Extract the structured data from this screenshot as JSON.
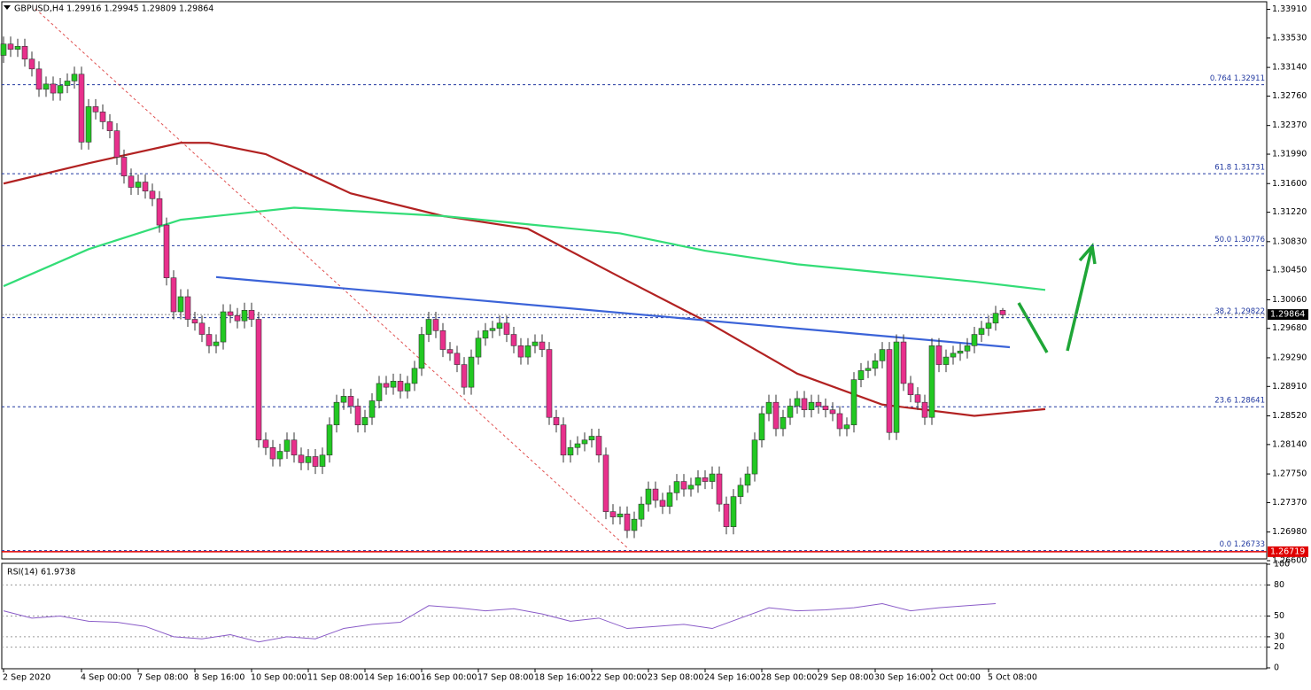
{
  "chart_data": {
    "type": "candlestick",
    "header": "GBPUSD,H4  1.29916 1.29945 1.29809 1.29864",
    "bull_color": "#22c822",
    "bear_color": "#e8308c",
    "open": [
      1.333,
      1.3345,
      1.3338,
      1.3342,
      1.3325,
      1.3312,
      1.3285,
      1.3292,
      1.328,
      1.329,
      1.3296,
      1.3305,
      1.3215,
      1.3262,
      1.3255,
      1.3242,
      1.323,
      1.3195,
      1.317,
      1.3155,
      1.3162,
      1.315,
      1.314,
      1.3105,
      1.3035,
      1.299,
      1.301,
      1.298,
      1.2975,
      1.296,
      1.2945,
      1.295,
      1.299,
      1.2985,
      1.2978,
      1.2992,
      1.298,
      1.282,
      1.281,
      1.2795,
      1.2805,
      1.282,
      1.28,
      1.279,
      1.2798,
      1.2785,
      1.28,
      1.284,
      1.287,
      1.2878,
      1.2865,
      1.284,
      1.285,
      1.2872,
      1.2895,
      1.289,
      1.2898,
      1.2885,
      1.2895,
      1.2915,
      1.296,
      1.298,
      1.2965,
      1.294,
      1.2935,
      1.292,
      1.289,
      1.293,
      1.2955,
      1.2965,
      1.2968,
      1.2975,
      1.296,
      1.2945,
      1.293,
      1.2945,
      1.295,
      1.294,
      1.285,
      1.284,
      1.28,
      1.281,
      1.2815,
      1.282,
      1.2825,
      1.28,
      1.2725,
      1.2718,
      1.2722,
      1.27,
      1.2715,
      1.2735,
      1.2755,
      1.274,
      1.2732,
      1.275,
      1.2765,
      1.2755,
      1.276,
      1.277,
      1.2765,
      1.2775,
      1.2735,
      1.2705,
      1.2745,
      1.276,
      1.2775,
      1.282,
      1.2855,
      1.287,
      1.2835,
      1.285,
      1.2865,
      1.2875,
      1.286,
      1.287,
      1.2865,
      1.286,
      1.2855,
      1.2835,
      1.284,
      1.29,
      1.2912,
      1.2915,
      1.2925,
      1.294,
      1.283,
      1.295,
      1.2895,
      1.288,
      1.287,
      1.285,
      1.2945,
      1.292,
      1.293,
      1.2935,
      1.2938,
      1.2945,
      1.296,
      1.2968,
      1.2975,
      1.2992
    ],
    "high": [
      1.3355,
      1.3355,
      1.3352,
      1.3352,
      1.3335,
      1.3322,
      1.3302,
      1.3302,
      1.33,
      1.3306,
      1.3315,
      1.3315,
      1.3272,
      1.3272,
      1.3265,
      1.3252,
      1.324,
      1.3205,
      1.318,
      1.3172,
      1.3172,
      1.316,
      1.315,
      1.3115,
      1.3045,
      1.302,
      1.302,
      1.299,
      1.2985,
      1.297,
      1.296,
      1.3,
      1.3,
      1.2995,
      1.3002,
      1.3002,
      1.299,
      1.283,
      1.282,
      1.2815,
      1.283,
      1.283,
      1.281,
      1.2808,
      1.2808,
      1.281,
      1.285,
      1.288,
      1.2888,
      1.2888,
      1.2875,
      1.286,
      1.2882,
      1.2905,
      1.2905,
      1.2908,
      1.2908,
      1.2905,
      1.2925,
      1.297,
      1.299,
      1.299,
      1.2975,
      1.295,
      1.2945,
      1.293,
      1.294,
      1.2965,
      1.2975,
      1.2978,
      1.2985,
      1.2985,
      1.297,
      1.2955,
      1.2955,
      1.296,
      1.296,
      1.295,
      1.286,
      1.285,
      1.282,
      1.2825,
      1.283,
      1.2835,
      1.2835,
      1.281,
      1.2735,
      1.2732,
      1.2732,
      1.2725,
      1.2745,
      1.2765,
      1.2765,
      1.275,
      1.276,
      1.2775,
      1.2775,
      1.277,
      1.278,
      1.278,
      1.2785,
      1.2785,
      1.2745,
      1.2755,
      1.277,
      1.2785,
      1.283,
      1.2865,
      1.288,
      1.288,
      1.286,
      1.2875,
      1.2885,
      1.2885,
      1.288,
      1.288,
      1.2875,
      1.287,
      1.2865,
      1.285,
      1.291,
      1.2922,
      1.2925,
      1.2935,
      1.295,
      1.295,
      1.296,
      1.296,
      1.2905,
      1.289,
      1.288,
      1.2955,
      1.2955,
      1.294,
      1.2945,
      1.2948,
      1.2955,
      1.297,
      1.2978,
      1.2985,
      1.2998,
      1.2995
    ],
    "low": [
      1.332,
      1.3328,
      1.3328,
      1.3315,
      1.3302,
      1.3275,
      1.3275,
      1.327,
      1.327,
      1.328,
      1.3286,
      1.3205,
      1.3205,
      1.3245,
      1.3232,
      1.322,
      1.3185,
      1.316,
      1.3145,
      1.3145,
      1.314,
      1.313,
      1.3095,
      1.3025,
      1.298,
      1.298,
      1.297,
      1.2965,
      1.295,
      1.2935,
      1.2935,
      1.294,
      1.2975,
      1.2968,
      1.2968,
      1.297,
      1.281,
      1.28,
      1.2785,
      1.2785,
      1.2795,
      1.279,
      1.278,
      1.278,
      1.2775,
      1.2775,
      1.279,
      1.283,
      1.286,
      1.2855,
      1.283,
      1.283,
      1.284,
      1.2862,
      1.288,
      1.288,
      1.2875,
      1.2875,
      1.2885,
      1.2905,
      1.295,
      1.2955,
      1.293,
      1.2925,
      1.291,
      1.288,
      1.288,
      1.292,
      1.2945,
      1.2955,
      1.2958,
      1.295,
      1.2935,
      1.292,
      1.292,
      1.2935,
      1.293,
      1.284,
      1.283,
      1.279,
      1.279,
      1.28,
      1.2805,
      1.281,
      1.279,
      1.2715,
      1.2708,
      1.2708,
      1.269,
      1.269,
      1.2705,
      1.2725,
      1.273,
      1.2722,
      1.2722,
      1.274,
      1.2745,
      1.2745,
      1.275,
      1.2755,
      1.2755,
      1.2725,
      1.2695,
      1.2695,
      1.2735,
      1.275,
      1.2765,
      1.281,
      1.2845,
      1.2825,
      1.2825,
      1.284,
      1.2855,
      1.285,
      1.285,
      1.2855,
      1.285,
      1.2845,
      1.2825,
      1.2825,
      1.283,
      1.289,
      1.2902,
      1.2905,
      1.2915,
      1.282,
      1.282,
      1.2885,
      1.287,
      1.286,
      1.284,
      1.284,
      1.291,
      1.291,
      1.292,
      1.2925,
      1.2928,
      1.2935,
      1.295,
      1.2958,
      1.2965,
      1.2981
    ],
    "close": [
      1.3345,
      1.3338,
      1.3342,
      1.3325,
      1.3312,
      1.3285,
      1.3292,
      1.328,
      1.329,
      1.3296,
      1.3305,
      1.3215,
      1.3262,
      1.3255,
      1.3242,
      1.323,
      1.3195,
      1.317,
      1.3155,
      1.3162,
      1.315,
      1.314,
      1.3105,
      1.3035,
      1.299,
      1.301,
      1.298,
      1.2975,
      1.296,
      1.2945,
      1.295,
      1.299,
      1.2985,
      1.2978,
      1.2992,
      1.298,
      1.282,
      1.281,
      1.2795,
      1.2805,
      1.282,
      1.28,
      1.279,
      1.2798,
      1.2785,
      1.28,
      1.284,
      1.287,
      1.2878,
      1.2865,
      1.284,
      1.285,
      1.2872,
      1.2895,
      1.289,
      1.2898,
      1.2885,
      1.2895,
      1.2915,
      1.296,
      1.298,
      1.2965,
      1.294,
      1.2935,
      1.292,
      1.289,
      1.293,
      1.2955,
      1.2965,
      1.2968,
      1.2975,
      1.296,
      1.2945,
      1.293,
      1.2945,
      1.295,
      1.294,
      1.285,
      1.284,
      1.28,
      1.281,
      1.2815,
      1.282,
      1.2825,
      1.28,
      1.2725,
      1.2718,
      1.2722,
      1.27,
      1.2715,
      1.2735,
      1.2755,
      1.274,
      1.2732,
      1.275,
      1.2765,
      1.2755,
      1.276,
      1.277,
      1.2765,
      1.2775,
      1.2735,
      1.2705,
      1.2745,
      1.276,
      1.2775,
      1.282,
      1.2855,
      1.287,
      1.2835,
      1.285,
      1.2865,
      1.2875,
      1.286,
      1.287,
      1.2865,
      1.286,
      1.2855,
      1.2835,
      1.284,
      1.29,
      1.2912,
      1.2915,
      1.2925,
      1.294,
      1.283,
      1.295,
      1.2895,
      1.288,
      1.287,
      1.285,
      1.2945,
      1.292,
      1.293,
      1.2935,
      1.2938,
      1.2945,
      1.296,
      1.2968,
      1.2975,
      1.2988,
      1.2986
    ],
    "ylim": [
      1.266,
      1.3394
    ],
    "yticks": [
      {
        "value": 1.3391,
        "label": "1.33910"
      },
      {
        "value": 1.3353,
        "label": "1.33530"
      },
      {
        "value": 1.3314,
        "label": "1.33140"
      },
      {
        "value": 1.3276,
        "label": "1.32760"
      },
      {
        "value": 1.3237,
        "label": "1.32370"
      },
      {
        "value": 1.3199,
        "label": "1.31990"
      },
      {
        "value": 1.316,
        "label": "1.31600"
      },
      {
        "value": 1.3122,
        "label": "1.31220"
      },
      {
        "value": 1.3083,
        "label": "1.30830"
      },
      {
        "value": 1.3045,
        "label": "1.30450"
      },
      {
        "value": 1.3006,
        "label": "1.30060"
      },
      {
        "value": 1.2968,
        "label": "1.29680"
      },
      {
        "value": 1.2929,
        "label": "1.29290"
      },
      {
        "value": 1.2891,
        "label": "1.28910"
      },
      {
        "value": 1.2852,
        "label": "1.28520"
      },
      {
        "value": 1.2814,
        "label": "1.28140"
      },
      {
        "value": 1.2775,
        "label": "1.27750"
      },
      {
        "value": 1.2737,
        "label": "1.27370"
      },
      {
        "value": 1.2698,
        "label": "1.26980"
      },
      {
        "value": 1.266,
        "label": "1.26600"
      }
    ],
    "xticks": [
      {
        "value": 0,
        "label": "2 Sep 2020"
      },
      {
        "value": 11,
        "label": "4 Sep 00:00"
      },
      {
        "value": 19,
        "label": "7 Sep 08:00"
      },
      {
        "value": 27,
        "label": "8 Sep 16:00"
      },
      {
        "value": 35,
        "label": "10 Sep 00:00"
      },
      {
        "value": 43,
        "label": "11 Sep 08:00"
      },
      {
        "value": 51,
        "label": "14 Sep 16:00"
      },
      {
        "value": 59,
        "label": "16 Sep 00:00"
      },
      {
        "value": 67,
        "label": "17 Sep 08:00"
      },
      {
        "value": 75,
        "label": "18 Sep 16:00"
      },
      {
        "value": 83,
        "label": "22 Sep 00:00"
      },
      {
        "value": 91,
        "label": "23 Sep 08:00"
      },
      {
        "value": 99,
        "label": "24 Sep 16:00"
      },
      {
        "value": 107,
        "label": "28 Sep 00:00"
      },
      {
        "value": 115,
        "label": "29 Sep 08:00"
      },
      {
        "value": 123,
        "label": "30 Sep 16:00"
      },
      {
        "value": 131,
        "label": "2 Oct 00:00"
      },
      {
        "value": 139,
        "label": "5 Oct 08:00"
      }
    ],
    "lines": [
      {
        "color": "#b22222",
        "x": [
          0,
          12,
          25,
          29,
          37,
          49,
          62,
          74,
          87,
          99,
          112,
          124,
          137,
          147
        ],
        "values": [
          1.316,
          1.3187,
          1.3214,
          1.3214,
          1.3199,
          1.3147,
          1.3117,
          1.31,
          1.3036,
          1.2978,
          1.2908,
          1.2867,
          1.2852,
          1.2861
        ]
      },
      {
        "color": "#33dd77",
        "x": [
          0,
          12,
          25,
          41,
          62,
          74,
          87,
          99,
          112,
          124,
          137,
          147
        ],
        "values": [
          1.3024,
          1.3073,
          1.3112,
          1.3128,
          1.3117,
          1.3106,
          1.3094,
          1.3071,
          1.3053,
          1.3042,
          1.303,
          1.3019
        ]
      },
      {
        "color": "#3b63d8",
        "x": [
          30,
          142
        ],
        "values": [
          1.3036,
          1.2943
        ]
      }
    ],
    "fib": [
      {
        "label": "0.764 1.32911",
        "value": 1.32911
      },
      {
        "label": "61.8 1.31731",
        "value": 1.31731
      },
      {
        "label": "50.0 1.30776",
        "value": 1.30776
      },
      {
        "label": "38.2 1.29822",
        "value": 1.29822
      },
      {
        "label": "23.6 1.28641",
        "value": 1.28641
      },
      {
        "label": "0.0 1.26733",
        "value": 1.26733
      }
    ],
    "last_price": {
      "value": 1.29864,
      "label": "1.29864"
    },
    "red_line": {
      "value": 1.26719,
      "label": "1.26719"
    },
    "rsi": {
      "title": "RSI(14) 61.9738",
      "color": "#8a5cc8",
      "ylim": [
        0,
        100
      ],
      "yticks": [
        100,
        80,
        50,
        30,
        20,
        0
      ],
      "x": [
        0,
        4,
        8,
        12,
        16,
        20,
        24,
        28,
        32,
        36,
        40,
        44,
        48,
        52,
        56,
        60,
        64,
        68,
        72,
        76,
        80,
        84,
        88,
        92,
        96,
        100,
        104,
        108,
        112,
        116,
        120,
        124,
        128,
        132,
        136,
        140
      ],
      "values": [
        55,
        48,
        50,
        45,
        44,
        40,
        30,
        28,
        32,
        25,
        30,
        28,
        38,
        42,
        44,
        60,
        58,
        55,
        57,
        52,
        45,
        48,
        38,
        40,
        42,
        38,
        48,
        58,
        55,
        56,
        58,
        62,
        55,
        58,
        60,
        62
      ]
    }
  }
}
